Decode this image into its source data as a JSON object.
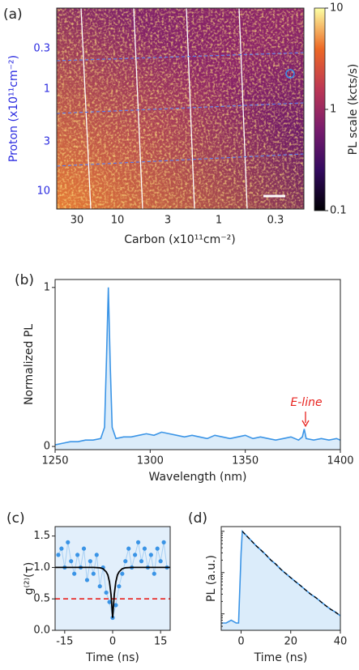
{
  "chart_data": [
    {
      "type": "heatmap",
      "panel_label": "(a)",
      "xlabel": "Carbon (x10¹¹cm⁻²)",
      "ylabel": "Proton (x10¹¹cm⁻²)",
      "x_categories": [
        "30",
        "10",
        "3",
        "1",
        "0.3"
      ],
      "y_categories": [
        "0.3",
        "1",
        "3",
        "10"
      ],
      "colorbar": {
        "label": "PL scale (kcts/s)",
        "lim": [
          0.1,
          10
        ],
        "ticks": [
          0.1,
          1,
          10
        ],
        "log": true
      }
    },
    {
      "type": "line",
      "panel_label": "(b)",
      "xlabel": "Wavelength (nm)",
      "ylabel": "Normalized PL",
      "annotation": "E-line",
      "x": [
        1250,
        1254,
        1258,
        1262,
        1266,
        1270,
        1274,
        1276,
        1277,
        1278,
        1279,
        1280,
        1282,
        1286,
        1290,
        1294,
        1298,
        1302,
        1306,
        1310,
        1314,
        1318,
        1322,
        1326,
        1330,
        1334,
        1338,
        1342,
        1346,
        1350,
        1354,
        1358,
        1362,
        1366,
        1370,
        1374,
        1378,
        1380,
        1381,
        1382,
        1386,
        1390,
        1394,
        1398,
        1400
      ],
      "series": [
        {
          "color": "#3a94e6",
          "values": [
            0.01,
            0.02,
            0.03,
            0.03,
            0.04,
            0.04,
            0.05,
            0.12,
            0.55,
            1.0,
            0.5,
            0.12,
            0.05,
            0.06,
            0.06,
            0.07,
            0.08,
            0.07,
            0.09,
            0.08,
            0.07,
            0.06,
            0.07,
            0.06,
            0.05,
            0.07,
            0.06,
            0.05,
            0.06,
            0.07,
            0.05,
            0.06,
            0.05,
            0.04,
            0.05,
            0.06,
            0.04,
            0.06,
            0.11,
            0.05,
            0.04,
            0.05,
            0.04,
            0.05,
            0.04
          ]
        }
      ],
      "xlim": [
        1250,
        1400
      ],
      "xticks": [
        1250,
        1300,
        1350,
        1400
      ],
      "ylim": [
        -0.02,
        1.05
      ],
      "yticks": [
        0,
        1
      ]
    },
    {
      "type": "scatter",
      "panel_label": "(c)",
      "xlabel": "Time (ns)",
      "ylabel": "g⁽²⁾(τ)",
      "x": [
        -17,
        -16,
        -15,
        -14,
        -13,
        -12,
        -11,
        -10,
        -9,
        -8,
        -7,
        -6,
        -5,
        -4,
        -3,
        -2,
        -1,
        0,
        1,
        2,
        3,
        4,
        5,
        6,
        7,
        8,
        9,
        10,
        11,
        12,
        13,
        14,
        15,
        16,
        17
      ],
      "series": [
        {
          "color": "#3a94e6",
          "values": [
            1.2,
            1.3,
            1.0,
            1.4,
            1.1,
            0.9,
            1.2,
            1.0,
            1.3,
            0.8,
            1.1,
            0.9,
            1.2,
            0.7,
            1.0,
            0.6,
            0.45,
            0.2,
            0.4,
            0.7,
            0.9,
            1.1,
            1.3,
            1.0,
            1.2,
            1.4,
            1.1,
            1.3,
            1.0,
            1.2,
            0.9,
            1.3,
            1.1,
            1.4,
            1.0
          ]
        }
      ],
      "fit": {
        "color": "#000000",
        "x": [
          -18,
          -6,
          -4,
          -3,
          -2,
          -1.5,
          -1,
          -0.5,
          0,
          0.5,
          1,
          1.5,
          2,
          3,
          4,
          6,
          18
        ],
        "values": [
          1.0,
          1.0,
          0.995,
          0.98,
          0.93,
          0.88,
          0.77,
          0.57,
          0.2,
          0.57,
          0.77,
          0.88,
          0.93,
          0.98,
          0.995,
          1.0,
          1.0
        ]
      },
      "reference_line": {
        "value": 0.5,
        "color": "#e8231f"
      },
      "xlim": [
        -18,
        18
      ],
      "xticks": [
        -15,
        0,
        15
      ],
      "ylim": [
        0,
        1.65
      ],
      "yticks": [
        {
          "value": 0,
          "label": "0.0"
        },
        0.5,
        {
          "value": 1,
          "label": "1.0"
        },
        1.5
      ]
    },
    {
      "type": "line",
      "panel_label": "(d)",
      "xlabel": "Time (ns)",
      "ylabel": "PL (a.u.)",
      "log_y": true,
      "x": [
        -8,
        -6,
        -4,
        -2,
        -1,
        0,
        0.5,
        2,
        4,
        6,
        8,
        10,
        12,
        14,
        16,
        18,
        20,
        22,
        24,
        26,
        28,
        30,
        32,
        34,
        36,
        38,
        40
      ],
      "series": [
        {
          "color": "#3a94e6",
          "values": [
            0.006,
            0.006,
            0.007,
            0.006,
            0.006,
            0.3,
            1.0,
            0.8,
            0.6,
            0.45,
            0.35,
            0.27,
            0.2,
            0.16,
            0.12,
            0.095,
            0.075,
            0.06,
            0.048,
            0.038,
            0.03,
            0.025,
            0.02,
            0.016,
            0.013,
            0.011,
            0.009
          ]
        }
      ],
      "fit": {
        "color": "#000000",
        "x": [
          0.5,
          2,
          4,
          6,
          8,
          10,
          12,
          14,
          16,
          18,
          20,
          22,
          24,
          26,
          28,
          30,
          32,
          34,
          36,
          38,
          40
        ],
        "values": [
          1.0,
          0.8,
          0.6,
          0.45,
          0.35,
          0.27,
          0.2,
          0.16,
          0.12,
          0.095,
          0.075,
          0.06,
          0.048,
          0.038,
          0.03,
          0.025,
          0.02,
          0.016,
          0.013,
          0.011,
          0.009
        ]
      },
      "xlim": [
        -8,
        40
      ],
      "xticks": [
        0,
        20,
        40
      ],
      "ylim": [
        0.004,
        1.3
      ]
    }
  ]
}
